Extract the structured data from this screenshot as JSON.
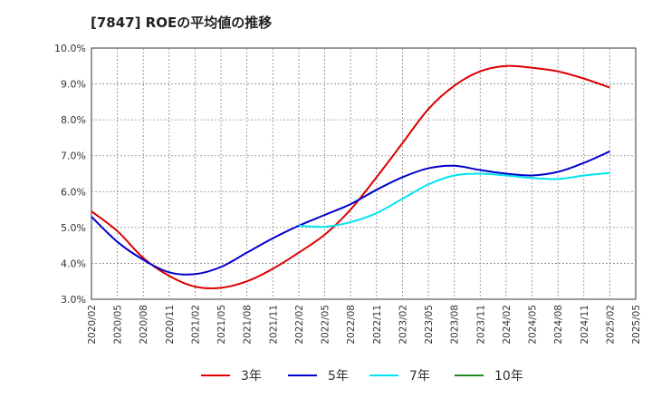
{
  "chart_data": {
    "type": "line",
    "title": "[7847]  ROEの平均値の推移",
    "xlabel": "",
    "ylabel": "",
    "ylim": [
      3.0,
      10.0
    ],
    "y_ticks": [
      "3.0%",
      "4.0%",
      "5.0%",
      "6.0%",
      "7.0%",
      "8.0%",
      "9.0%",
      "10.0%"
    ],
    "x_ticks": [
      "2020/02",
      "2020/05",
      "2020/08",
      "2020/11",
      "2021/02",
      "2021/05",
      "2021/08",
      "2021/11",
      "2022/02",
      "2022/05",
      "2022/08",
      "2022/11",
      "2023/02",
      "2023/05",
      "2023/08",
      "2023/11",
      "2024/02",
      "2024/05",
      "2024/08",
      "2024/11",
      "2025/02",
      "2025/05"
    ],
    "grid": true,
    "legend_position": "bottom",
    "series": [
      {
        "name": "3年",
        "color": "#dd0000",
        "x": [
          "2020/02",
          "2020/05",
          "2020/08",
          "2020/11",
          "2021/02",
          "2021/05",
          "2021/08",
          "2021/11",
          "2022/02",
          "2022/05",
          "2022/08",
          "2022/11",
          "2023/02",
          "2023/05",
          "2023/08",
          "2023/11",
          "2024/02",
          "2024/05",
          "2024/08",
          "2024/11",
          "2025/02"
        ],
        "values": [
          5.45,
          4.9,
          4.15,
          3.65,
          3.35,
          3.32,
          3.5,
          3.85,
          4.3,
          4.8,
          5.5,
          6.4,
          7.35,
          8.3,
          8.95,
          9.35,
          9.5,
          9.45,
          9.35,
          9.15,
          8.9
        ]
      },
      {
        "name": "5年",
        "color": "#0000cc",
        "x": [
          "2020/02",
          "2020/05",
          "2020/08",
          "2020/11",
          "2021/02",
          "2021/05",
          "2021/08",
          "2021/11",
          "2022/02",
          "2022/05",
          "2022/08",
          "2022/11",
          "2023/02",
          "2023/05",
          "2023/08",
          "2023/11",
          "2024/02",
          "2024/05",
          "2024/08",
          "2024/11",
          "2025/02"
        ],
        "values": [
          5.3,
          4.6,
          4.1,
          3.75,
          3.7,
          3.9,
          4.3,
          4.7,
          5.05,
          5.35,
          5.65,
          6.05,
          6.4,
          6.65,
          6.72,
          6.6,
          6.5,
          6.45,
          6.55,
          6.8,
          7.12
        ]
      },
      {
        "name": "7年",
        "color": "#00e5ee",
        "x": [
          "2022/02",
          "2022/05",
          "2022/08",
          "2022/11",
          "2023/02",
          "2023/05",
          "2023/08",
          "2023/11",
          "2024/02",
          "2024/05",
          "2024/08",
          "2024/11",
          "2025/02"
        ],
        "values": [
          5.05,
          5.02,
          5.15,
          5.4,
          5.8,
          6.2,
          6.45,
          6.5,
          6.45,
          6.38,
          6.35,
          6.45,
          6.52
        ]
      },
      {
        "name": "10年",
        "color": "#228b22",
        "x": [],
        "values": []
      }
    ]
  }
}
